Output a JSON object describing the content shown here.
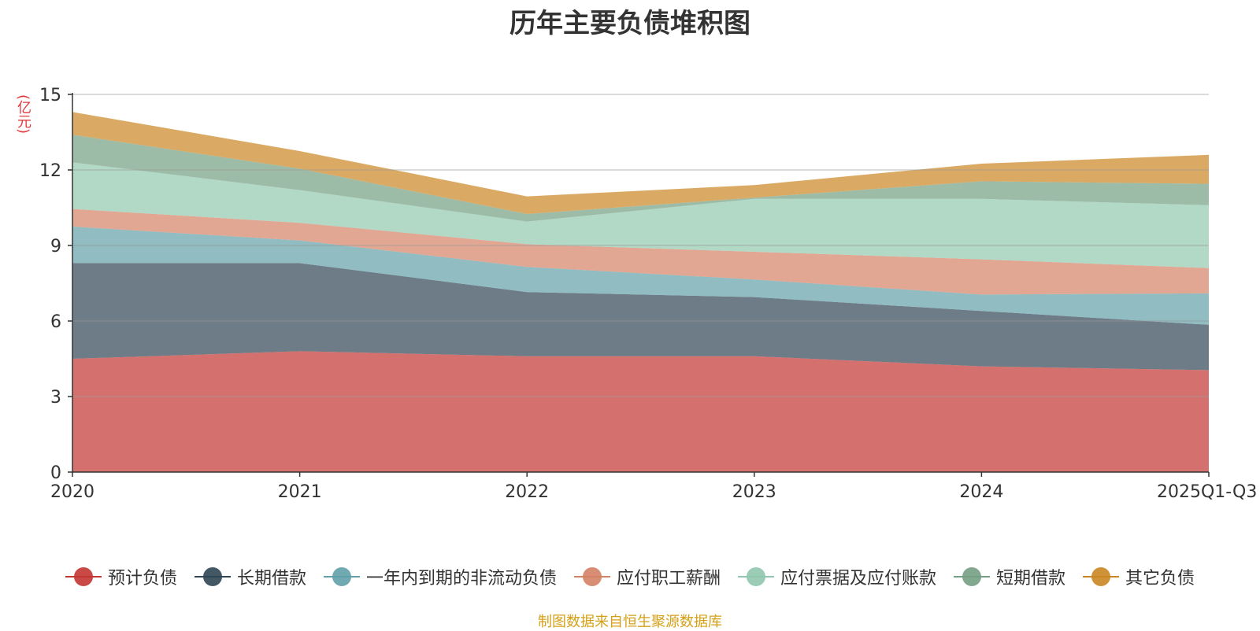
{
  "chart_data": {
    "type": "area",
    "stacked": true,
    "title": "历年主要负债堆积图",
    "ylabel": "(亿元)",
    "xlabel": "",
    "ylim": [
      0,
      15
    ],
    "yticks": [
      0,
      3,
      6,
      9,
      12,
      15
    ],
    "categories": [
      "2020",
      "2021",
      "2022",
      "2023",
      "2024",
      "2025Q1-Q3"
    ],
    "grid": true,
    "legend_position": "bottom",
    "series": [
      {
        "name": "预计负债",
        "color": "#c23531",
        "values": [
          4.5,
          4.8,
          4.6,
          4.6,
          4.2,
          4.05
        ]
      },
      {
        "name": "长期借款",
        "color": "#2f4554",
        "values": [
          3.8,
          3.5,
          2.55,
          2.35,
          2.2,
          1.8
        ]
      },
      {
        "name": "一年内到期的非流动负债",
        "color": "#61a0a8",
        "values": [
          1.45,
          0.9,
          1.0,
          0.7,
          0.65,
          1.25
        ]
      },
      {
        "name": "应付职工薪酬",
        "color": "#d48265",
        "values": [
          0.7,
          0.7,
          0.9,
          1.1,
          1.4,
          1.0
        ]
      },
      {
        "name": "应付票据及应付账款",
        "color": "#91c7ae",
        "values": [
          1.85,
          1.3,
          0.9,
          2.1,
          2.4,
          2.5
        ]
      },
      {
        "name": "短期借款",
        "color": "#749f83",
        "values": [
          1.1,
          0.85,
          0.3,
          0.05,
          0.7,
          0.85
        ]
      },
      {
        "name": "其它负债",
        "color": "#ca8622",
        "values": [
          0.9,
          0.7,
          0.7,
          0.5,
          0.7,
          1.15
        ]
      }
    ]
  },
  "source_note": "制图数据来自恒生聚源数据库"
}
